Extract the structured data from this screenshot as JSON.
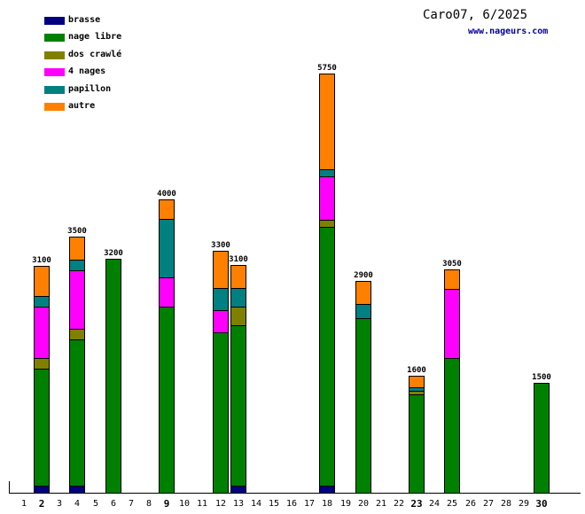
{
  "header": {
    "title": "Caro07, 6/2025",
    "website": "www.nageurs.com",
    "website_color": "#000099"
  },
  "legend": {
    "items": [
      {
        "label": "brasse",
        "color": "#000080"
      },
      {
        "label": "nage libre",
        "color": "#008000"
      },
      {
        "label": "dos crawlé",
        "color": "#808000"
      },
      {
        "label": "4 nages",
        "color": "#ff00ff"
      },
      {
        "label": "papillon",
        "color": "#008080"
      },
      {
        "label": "autre",
        "color": "#ff8000"
      }
    ]
  },
  "chart_data": {
    "type": "bar",
    "stacked": true,
    "title": "Caro07, 6/2025",
    "legend_position": "top-left",
    "grid": false,
    "series_order": [
      "brasse",
      "nage libre",
      "dos crawlé",
      "4 nages",
      "papillon",
      "autre"
    ],
    "colors": {
      "brasse": "#000080",
      "nage libre": "#008000",
      "dos crawlé": "#808000",
      "4 nages": "#ff00ff",
      "papillon": "#008080",
      "autre": "#ff8000"
    },
    "x_axis": {
      "tick_labels": [
        "1",
        "2",
        "3",
        "4",
        "5",
        "6",
        "7",
        "8",
        "9",
        "10",
        "11",
        "12",
        "13",
        "14",
        "15",
        "16",
        "17",
        "18",
        "19",
        "20",
        "21",
        "22",
        "23",
        "24",
        "25",
        "26",
        "27",
        "28",
        "29",
        "30"
      ],
      "bold_ticks": [
        2,
        9,
        23,
        30
      ]
    },
    "y_axis": {
      "visible_scale": false,
      "max_value": 5750
    },
    "bars": [
      {
        "day": 2,
        "total": 3100,
        "values": {
          "brasse": 100,
          "nage libre": 1600,
          "dos crawlé": 150,
          "4 nages": 700,
          "papillon": 150,
          "autre": 400
        }
      },
      {
        "day": 4,
        "total": 3500,
        "values": {
          "brasse": 100,
          "nage libre": 2000,
          "dos crawlé": 150,
          "4 nages": 800,
          "papillon": 150,
          "autre": 300
        }
      },
      {
        "day": 6,
        "total": 3200,
        "values": {
          "nage libre": 3200
        }
      },
      {
        "day": 9,
        "total": 4000,
        "values": {
          "nage libre": 2550,
          "4 nages": 400,
          "papillon": 800,
          "autre": 250
        }
      },
      {
        "day": 12,
        "total": 3300,
        "values": {
          "nage libre": 2200,
          "4 nages": 300,
          "papillon": 300,
          "autre": 500
        }
      },
      {
        "day": 13,
        "total": 3100,
        "values": {
          "brasse": 100,
          "nage libre": 2200,
          "dos crawlé": 250,
          "papillon": 250,
          "autre": 300
        }
      },
      {
        "day": 18,
        "total": 5750,
        "values": {
          "brasse": 100,
          "nage libre": 3550,
          "dos crawlé": 100,
          "4 nages": 600,
          "papillon": 100,
          "autre": 1300
        }
      },
      {
        "day": 20,
        "total": 2900,
        "values": {
          "nage libre": 2400,
          "papillon": 200,
          "autre": 300
        }
      },
      {
        "day": 23,
        "total": 1600,
        "values": {
          "nage libre": 1350,
          "dos crawlé": 50,
          "papillon": 50,
          "autre": 150
        }
      },
      {
        "day": 25,
        "total": 3050,
        "values": {
          "nage libre": 1850,
          "4 nages": 950,
          "autre": 250
        }
      },
      {
        "day": 30,
        "total": 1500,
        "values": {
          "nage libre": 1500
        }
      }
    ]
  }
}
